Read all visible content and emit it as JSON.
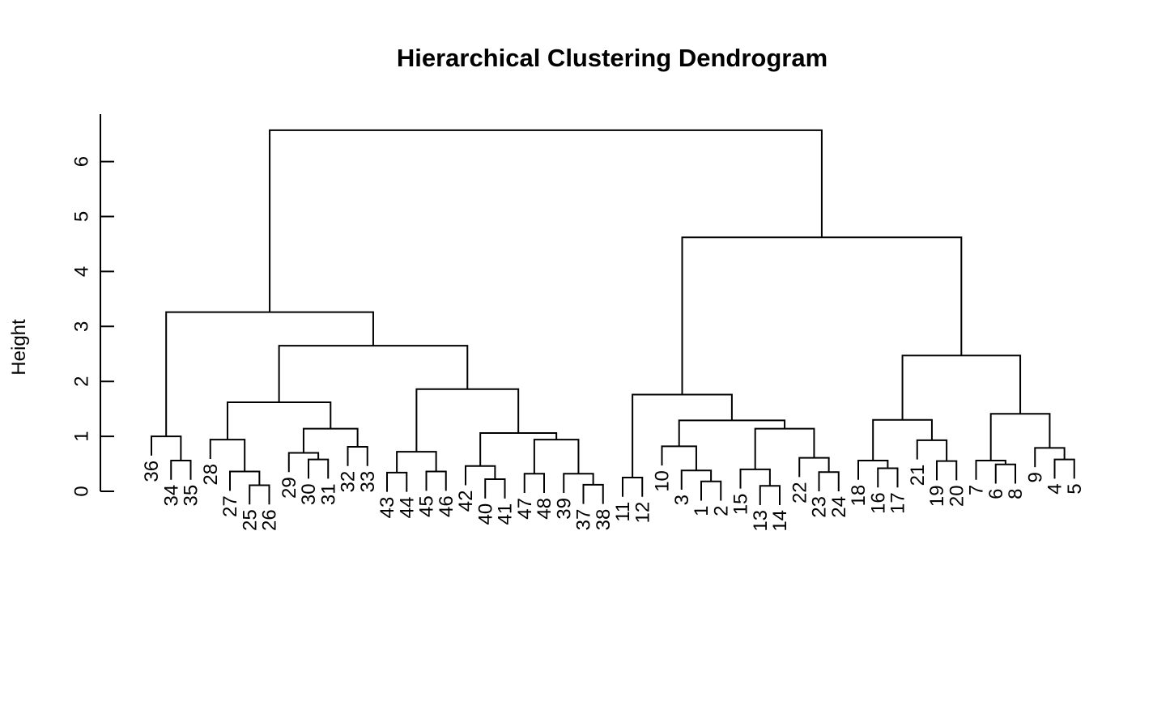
{
  "chart_data": {
    "type": "dendrogram",
    "title": "Hierarchical Clustering Dendrogram",
    "xlabel": "",
    "ylabel": "Height",
    "ylim": [
      0,
      6.7
    ],
    "y_ticks": [
      0,
      1,
      2,
      3,
      4,
      5,
      6
    ],
    "leaf_order": [
      "36",
      "34",
      "35",
      "28",
      "27",
      "25",
      "26",
      "29",
      "30",
      "31",
      "32",
      "33",
      "43",
      "44",
      "45",
      "46",
      "42",
      "40",
      "41",
      "47",
      "48",
      "39",
      "37",
      "38",
      "11",
      "12",
      "10",
      "3",
      "1",
      "2",
      "15",
      "13",
      "14",
      "22",
      "23",
      "24",
      "18",
      "16",
      "17",
      "21",
      "19",
      "20",
      "7",
      "6",
      "8",
      "9",
      "4",
      "5"
    ],
    "merges": [
      {
        "id": "m1",
        "height": 0.56,
        "children": [
          "34",
          "35"
        ]
      },
      {
        "id": "m2",
        "height": 1.0,
        "children": [
          "36",
          "m1"
        ]
      },
      {
        "id": "m3",
        "height": 0.11,
        "children": [
          "25",
          "26"
        ]
      },
      {
        "id": "m4",
        "height": 0.36,
        "children": [
          "27",
          "m3"
        ]
      },
      {
        "id": "m5",
        "height": 0.94,
        "children": [
          "28",
          "m4"
        ]
      },
      {
        "id": "m6",
        "height": 0.58,
        "children": [
          "30",
          "31"
        ]
      },
      {
        "id": "m7",
        "height": 0.7,
        "children": [
          "29",
          "m6"
        ]
      },
      {
        "id": "m8",
        "height": 0.81,
        "children": [
          "32",
          "33"
        ]
      },
      {
        "id": "m9",
        "height": 1.14,
        "children": [
          "m7",
          "m8"
        ]
      },
      {
        "id": "m10",
        "height": 1.62,
        "children": [
          "m5",
          "m9"
        ]
      },
      {
        "id": "m11",
        "height": 0.34,
        "children": [
          "43",
          "44"
        ]
      },
      {
        "id": "m12",
        "height": 0.36,
        "children": [
          "45",
          "46"
        ]
      },
      {
        "id": "m13",
        "height": 0.72,
        "children": [
          "m11",
          "m12"
        ]
      },
      {
        "id": "m14",
        "height": 0.22,
        "children": [
          "40",
          "41"
        ]
      },
      {
        "id": "m15",
        "height": 0.46,
        "children": [
          "42",
          "m14"
        ]
      },
      {
        "id": "m16",
        "height": 0.32,
        "children": [
          "47",
          "48"
        ]
      },
      {
        "id": "m17",
        "height": 0.12,
        "children": [
          "37",
          "38"
        ]
      },
      {
        "id": "m18",
        "height": 0.32,
        "children": [
          "39",
          "m17"
        ]
      },
      {
        "id": "m19",
        "height": 0.94,
        "children": [
          "m16",
          "m18"
        ]
      },
      {
        "id": "m20",
        "height": 1.06,
        "children": [
          "m15",
          "m19"
        ]
      },
      {
        "id": "m21",
        "height": 1.86,
        "children": [
          "m13",
          "m20"
        ]
      },
      {
        "id": "m22",
        "height": 2.65,
        "children": [
          "m10",
          "m21"
        ]
      },
      {
        "id": "m23",
        "height": 3.26,
        "children": [
          "m2",
          "m22"
        ]
      },
      {
        "id": "m24",
        "height": 0.25,
        "children": [
          "11",
          "12"
        ]
      },
      {
        "id": "m25",
        "height": 0.18,
        "children": [
          "1",
          "2"
        ]
      },
      {
        "id": "m26",
        "height": 0.38,
        "children": [
          "3",
          "m25"
        ]
      },
      {
        "id": "m27",
        "height": 0.82,
        "children": [
          "10",
          "m26"
        ]
      },
      {
        "id": "m28",
        "height": 0.1,
        "children": [
          "13",
          "14"
        ]
      },
      {
        "id": "m29",
        "height": 0.4,
        "children": [
          "15",
          "m28"
        ]
      },
      {
        "id": "m30",
        "height": 0.35,
        "children": [
          "23",
          "24"
        ]
      },
      {
        "id": "m31",
        "height": 0.61,
        "children": [
          "22",
          "m30"
        ]
      },
      {
        "id": "m32",
        "height": 1.14,
        "children": [
          "m29",
          "m31"
        ]
      },
      {
        "id": "m33",
        "height": 1.29,
        "children": [
          "m27",
          "m32"
        ]
      },
      {
        "id": "m34",
        "height": 1.76,
        "children": [
          "m24",
          "m33"
        ]
      },
      {
        "id": "m35",
        "height": 0.42,
        "children": [
          "16",
          "17"
        ]
      },
      {
        "id": "m36",
        "height": 0.56,
        "children": [
          "18",
          "m35"
        ]
      },
      {
        "id": "m37",
        "height": 0.55,
        "children": [
          "19",
          "20"
        ]
      },
      {
        "id": "m38",
        "height": 0.93,
        "children": [
          "21",
          "m37"
        ]
      },
      {
        "id": "m39",
        "height": 1.3,
        "children": [
          "m36",
          "m38"
        ]
      },
      {
        "id": "m40",
        "height": 0.49,
        "children": [
          "6",
          "8"
        ]
      },
      {
        "id": "m41",
        "height": 0.56,
        "children": [
          "7",
          "m40"
        ]
      },
      {
        "id": "m42",
        "height": 0.58,
        "children": [
          "4",
          "5"
        ]
      },
      {
        "id": "m43",
        "height": 0.79,
        "children": [
          "9",
          "m42"
        ]
      },
      {
        "id": "m44",
        "height": 1.41,
        "children": [
          "m41",
          "m43"
        ]
      },
      {
        "id": "m45",
        "height": 2.47,
        "children": [
          "m39",
          "m44"
        ]
      },
      {
        "id": "m46",
        "height": 4.62,
        "children": [
          "m34",
          "m45"
        ]
      },
      {
        "id": "m47",
        "height": 6.57,
        "children": [
          "m23",
          "m46"
        ]
      }
    ]
  }
}
